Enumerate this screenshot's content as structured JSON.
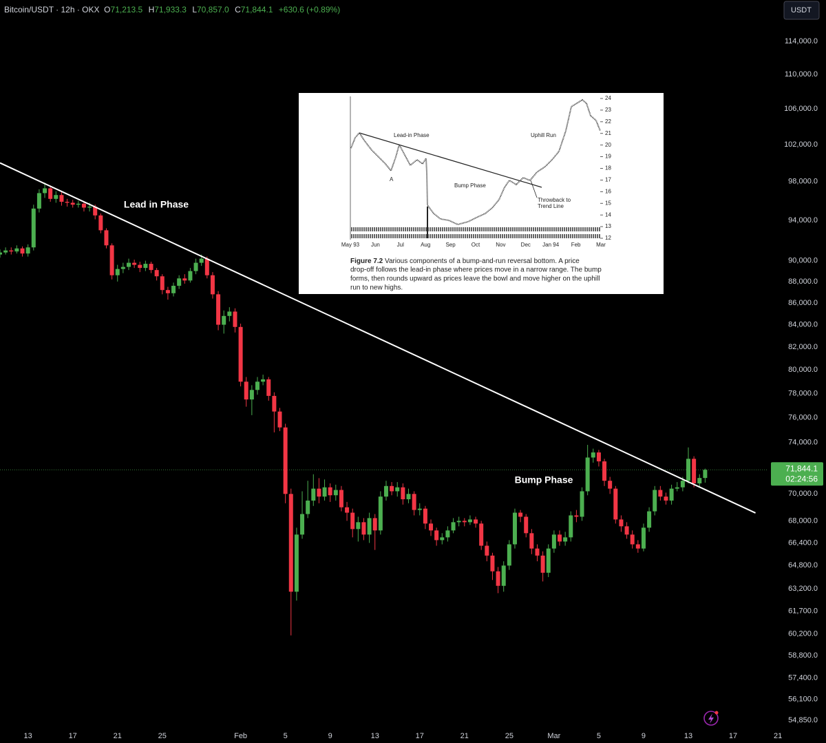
{
  "header": {
    "symbol": "Bitcoin/USDT · 12h · OKX",
    "ohlc": [
      {
        "key": "O",
        "value": "71,213.5"
      },
      {
        "key": "H",
        "value": "71,933.3"
      },
      {
        "key": "L",
        "value": "70,857.0"
      },
      {
        "key": "C",
        "value": "71,844.1"
      }
    ],
    "change": "+630.6 (+0.89%)",
    "currency_button": "USDT"
  },
  "chart_data": {
    "type": "candlestick",
    "log_scale": true,
    "grid": false,
    "up_color": "#4caf50",
    "down_color": "#f23645",
    "xlim": [
      10.5,
      84.3
    ],
    "xticks": [
      {
        "value": 13,
        "label": "13"
      },
      {
        "value": 17,
        "label": "17"
      },
      {
        "value": 21,
        "label": "21"
      },
      {
        "value": 25,
        "label": "25"
      },
      {
        "value": 32,
        "label": "Feb"
      },
      {
        "value": 36,
        "label": "5"
      },
      {
        "value": 40,
        "label": "9"
      },
      {
        "value": 44,
        "label": "13"
      },
      {
        "value": 48,
        "label": "17"
      },
      {
        "value": 52,
        "label": "21"
      },
      {
        "value": 56,
        "label": "25"
      },
      {
        "value": 60,
        "label": "Mar"
      },
      {
        "value": 64,
        "label": "5"
      },
      {
        "value": 68,
        "label": "9"
      },
      {
        "value": 72,
        "label": "13"
      },
      {
        "value": 76,
        "label": "17"
      },
      {
        "value": 80,
        "label": "21"
      }
    ],
    "ylim": [
      54485,
      119190
    ],
    "yticks": [
      {
        "value": 114000,
        "label": "114,000.0"
      },
      {
        "value": 110000,
        "label": "110,000.0"
      },
      {
        "value": 106000,
        "label": "106,000.0"
      },
      {
        "value": 102000,
        "label": "102,000.0"
      },
      {
        "value": 98000,
        "label": "98,000.0"
      },
      {
        "value": 94000,
        "label": "94,000.0"
      },
      {
        "value": 90000,
        "label": "90,000.0"
      },
      {
        "value": 88000,
        "label": "88,000.0"
      },
      {
        "value": 86000,
        "label": "86,000.0"
      },
      {
        "value": 84000,
        "label": "84,000.0"
      },
      {
        "value": 82000,
        "label": "82,000.0"
      },
      {
        "value": 80000,
        "label": "80,000.0"
      },
      {
        "value": 78000,
        "label": "78,000.0"
      },
      {
        "value": 76000,
        "label": "76,000.0"
      },
      {
        "value": 74000,
        "label": "74,000.0"
      },
      {
        "value": 70000,
        "label": "70,000.0"
      },
      {
        "value": 68000,
        "label": "68,000.0"
      },
      {
        "value": 66400,
        "label": "66,400.0"
      },
      {
        "value": 64800,
        "label": "64,800.0"
      },
      {
        "value": 63200,
        "label": "63,200.0"
      },
      {
        "value": 61700,
        "label": "61,700.0"
      },
      {
        "value": 60200,
        "label": "60,200.0"
      },
      {
        "value": 58800,
        "label": "58,800.0"
      },
      {
        "value": 57400,
        "label": "57,400.0"
      },
      {
        "value": 56100,
        "label": "56,100.0"
      },
      {
        "value": 54850,
        "label": "54,850.0"
      }
    ],
    "last_price": {
      "value": 71844.1,
      "label": "71,844.1"
    },
    "countdown": "02:24:56",
    "trendline": {
      "x": [
        10.5,
        78.0
      ],
      "values": [
        100000,
        68580
      ]
    },
    "annotations": [
      "Lead in Phase",
      "Bump Phase"
    ],
    "x": [
      10.5,
      11,
      11.5,
      12,
      12.5,
      13,
      13.5,
      14,
      14.5,
      15,
      15.5,
      16,
      16.5,
      17,
      17.5,
      18,
      18.5,
      19,
      19.5,
      20,
      20.5,
      21,
      21.5,
      22,
      22.5,
      23,
      23.5,
      24,
      24.5,
      25,
      25.5,
      26,
      26.5,
      27,
      27.5,
      28,
      28.5,
      29,
      29.5,
      30,
      30.5,
      31,
      31.5,
      32,
      32.5,
      33,
      33.5,
      34,
      34.5,
      35,
      35.5,
      36,
      36.5,
      37,
      37.5,
      38,
      38.5,
      39,
      39.5,
      40,
      40.5,
      41,
      41.5,
      42,
      42.5,
      43,
      43.5,
      44,
      44.5,
      45,
      45.5,
      46,
      46.5,
      47,
      47.5,
      48,
      48.5,
      49,
      49.5,
      50,
      50.5,
      51,
      51.5,
      52,
      52.5,
      53,
      53.5,
      54,
      54.5,
      55,
      55.5,
      56,
      56.5,
      57,
      57.5,
      58,
      58.5,
      59,
      59.5,
      60,
      60.5,
      61,
      61.5,
      62,
      62.5,
      63,
      63.5,
      64,
      64.5,
      65,
      65.5,
      66,
      66.5,
      67,
      67.5,
      68,
      68.5,
      69,
      69.5,
      70,
      70.5,
      71,
      71.5,
      72,
      72.5,
      73,
      73.5
    ],
    "open": [
      90600,
      90800,
      91000,
      90900,
      91200,
      90700,
      91300,
      95200,
      96800,
      97300,
      96200,
      96600,
      95900,
      95800,
      95600,
      95700,
      95300,
      95400,
      94500,
      93000,
      91500,
      88600,
      89200,
      89400,
      89800,
      89600,
      89300,
      89700,
      89100,
      88500,
      87200,
      86900,
      87600,
      88300,
      88100,
      89000,
      89800,
      90200,
      88600,
      86800,
      84000,
      84800,
      85200,
      83800,
      79000,
      77500,
      78300,
      79000,
      79200,
      77800,
      76500,
      75200,
      70000,
      63000,
      67000,
      68500,
      69500,
      70400,
      69800,
      70500,
      69900,
      70300,
      69000,
      68600,
      67400,
      67900,
      67000,
      68200,
      67300,
      69800,
      70600,
      70200,
      70500,
      69600,
      70000,
      68800,
      68900,
      67800,
      67300,
      66600,
      66800,
      67300,
      67900,
      68000,
      67900,
      68100,
      67800,
      66200,
      65500,
      64400,
      63400,
      64800,
      66300,
      68600,
      68300,
      67100,
      66000,
      65500,
      64300,
      66000,
      67000,
      66500,
      66800,
      68400,
      68300,
      70200,
      72800,
      73200,
      72500,
      71000,
      70400,
      68100,
      67600,
      67000,
      66300,
      66000,
      67500,
      68700,
      70300,
      69800,
      69500,
      70400,
      70500,
      71000,
      72700,
      70800,
      71213.5
    ],
    "high": [
      91100,
      91300,
      91300,
      91500,
      91400,
      91600,
      95600,
      97200,
      97900,
      97600,
      97000,
      96900,
      96200,
      96100,
      96000,
      95900,
      95800,
      95600,
      94700,
      93200,
      91700,
      89600,
      89800,
      90200,
      90100,
      89900,
      90000,
      89900,
      89300,
      88700,
      87500,
      87900,
      88600,
      88700,
      89300,
      90200,
      90600,
      90400,
      88900,
      87100,
      85300,
      85600,
      85500,
      84100,
      79400,
      78700,
      79400,
      79600,
      79400,
      78100,
      76800,
      75500,
      70400,
      67500,
      70200,
      71000,
      71500,
      71200,
      71100,
      70800,
      70700,
      70600,
      69400,
      68900,
      68300,
      68200,
      68600,
      68500,
      70200,
      71000,
      70900,
      70900,
      70800,
      70400,
      70200,
      69300,
      69100,
      68100,
      67500,
      67100,
      67600,
      68200,
      68300,
      68200,
      68400,
      68300,
      68000,
      66500,
      65700,
      64700,
      65100,
      66600,
      68900,
      68800,
      68500,
      67400,
      66300,
      65800,
      66300,
      67300,
      67300,
      67200,
      68700,
      68800,
      70500,
      73800,
      73500,
      73400,
      72700,
      71300,
      70600,
      68400,
      67900,
      67300,
      66600,
      67800,
      69000,
      70600,
      70600,
      70100,
      70700,
      70900,
      71300,
      73600,
      72900,
      71500,
      71933.3
    ],
    "low": [
      90300,
      90600,
      90600,
      90700,
      90400,
      90400,
      91000,
      94800,
      96300,
      95900,
      95800,
      95500,
      95400,
      95300,
      95300,
      94900,
      94900,
      94100,
      92700,
      91200,
      88200,
      88000,
      88800,
      89100,
      89300,
      88900,
      89000,
      88800,
      88100,
      86800,
      86300,
      86600,
      87300,
      87800,
      87900,
      88700,
      89500,
      88300,
      86400,
      83500,
      83200,
      84300,
      83300,
      78600,
      76900,
      76200,
      77900,
      78700,
      77400,
      74800,
      74900,
      69300,
      60100,
      62400,
      66700,
      68200,
      69100,
      69300,
      69500,
      69400,
      69500,
      68700,
      68000,
      66800,
      66500,
      66600,
      66400,
      65900,
      67000,
      69500,
      69900,
      69800,
      69200,
      69300,
      68400,
      68400,
      67400,
      66900,
      66200,
      66300,
      66500,
      67100,
      67600,
      67600,
      67700,
      67500,
      65900,
      65100,
      63800,
      62900,
      63000,
      64500,
      66000,
      67900,
      66800,
      65600,
      65100,
      63700,
      64000,
      65700,
      66200,
      66200,
      66500,
      67900,
      68000,
      69900,
      72400,
      72100,
      70600,
      70000,
      67800,
      67200,
      66700,
      66000,
      65700,
      65800,
      67200,
      68400,
      69500,
      69200,
      69200,
      70200,
      70200,
      70800,
      70500,
      70500,
      70857.0
    ],
    "close": [
      90800,
      91000,
      90900,
      91200,
      90700,
      91300,
      95200,
      96800,
      97300,
      96200,
      96600,
      95900,
      95800,
      95600,
      95700,
      95300,
      95400,
      94500,
      93000,
      91500,
      88600,
      89200,
      89400,
      89800,
      89600,
      89300,
      89700,
      89100,
      88500,
      87200,
      86900,
      87600,
      88300,
      88100,
      89000,
      89800,
      90200,
      88600,
      86800,
      84000,
      84800,
      85200,
      83800,
      79000,
      77500,
      78300,
      79000,
      79200,
      77800,
      76500,
      75200,
      70000,
      63000,
      67000,
      68500,
      69500,
      70400,
      69800,
      70500,
      69900,
      70300,
      69000,
      68600,
      67400,
      67900,
      67000,
      68200,
      67300,
      69800,
      70600,
      70200,
      70500,
      69600,
      70000,
      68800,
      68900,
      67800,
      67300,
      66600,
      66800,
      67300,
      67900,
      68000,
      67900,
      68100,
      67800,
      66200,
      65500,
      64400,
      63400,
      64800,
      66300,
      68600,
      68300,
      67100,
      66000,
      65500,
      64300,
      66000,
      67000,
      66500,
      66800,
      68400,
      68300,
      70200,
      72800,
      73200,
      72500,
      71000,
      70400,
      68100,
      67600,
      67000,
      66300,
      66000,
      67500,
      68700,
      70300,
      69800,
      69500,
      70400,
      70500,
      71000,
      72700,
      70800,
      71213.5,
      71844.1
    ]
  },
  "inset": {
    "annotations": [
      "Lead-in Phase",
      "A",
      "Bump Phase",
      "Uphill Run",
      "Throwback to",
      "Trend Line"
    ],
    "y_labels": [
      "24",
      "23",
      "22",
      "21",
      "20",
      "19",
      "18",
      "17",
      "16",
      "15",
      "14",
      "13",
      "12"
    ],
    "x_labels": [
      "May 93",
      "Jun",
      "Jul",
      "Aug",
      "Sep",
      "Oct",
      "Nov",
      "Dec",
      "Jan 94",
      "Feb",
      "Mar"
    ],
    "caption_label": "Figure 7.2",
    "caption_lines": [
      "Various components of a bump-and-run reversal bottom. A price",
      "drop-off follows the lead-in phase where prices move in a narrow range. The bump",
      "forms, then rounds upward as prices leave the bowl and move higher on the uphill",
      "run to new highs."
    ]
  }
}
